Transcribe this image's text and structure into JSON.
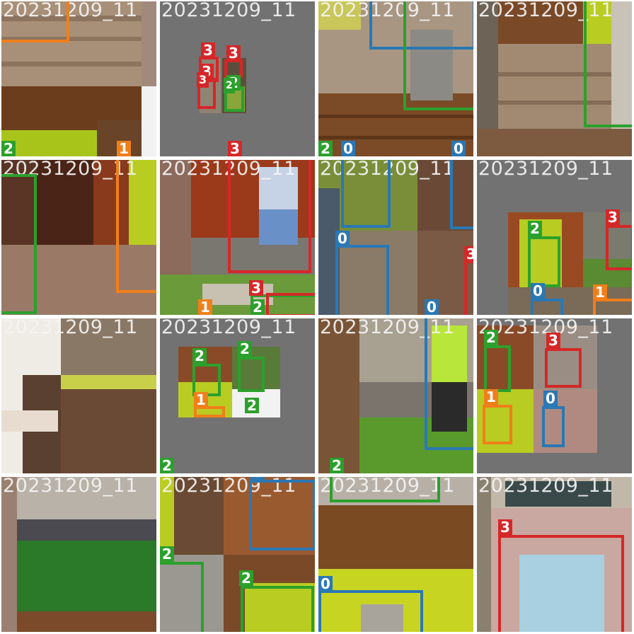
{
  "colors": {
    "0": "#2a78b4",
    "1": "#f07f1a",
    "2": "#2ca02c",
    "3": "#d62728"
  },
  "tiles": [
    {
      "filename": "20231209_11",
      "labels": [
        "2",
        "1"
      ]
    },
    {
      "filename": "20231209_11",
      "labels": [
        "3",
        "3",
        "3",
        "3",
        "2",
        "2",
        "3"
      ]
    },
    {
      "filename": "20231209_11",
      "labels": [
        "2",
        "0",
        "0"
      ]
    },
    {
      "filename": "20231209_11",
      "labels": []
    },
    {
      "filename": "20231209_11",
      "labels": []
    },
    {
      "filename": "20231209_11",
      "labels": [
        "3",
        "1",
        "2"
      ]
    },
    {
      "filename": "20231209_11",
      "labels": [
        "0",
        "0",
        "3"
      ]
    },
    {
      "filename": "20231209_11",
      "labels": [
        "2",
        "3",
        "0",
        "1"
      ]
    },
    {
      "filename": "20231209_11",
      "labels": []
    },
    {
      "filename": "20231209_11",
      "labels": [
        "2",
        "2",
        "1",
        "2",
        "2"
      ]
    },
    {
      "filename": "20231209_11",
      "labels": [
        "2"
      ]
    },
    {
      "filename": "20231209_11",
      "labels": [
        "2",
        "3",
        "1",
        "0"
      ]
    },
    {
      "filename": "20231209_11",
      "labels": []
    },
    {
      "filename": "20231209_11",
      "labels": [
        "0",
        "2",
        "2"
      ]
    },
    {
      "filename": "20231209_11",
      "labels": [
        "0"
      ]
    },
    {
      "filename": "20231209_11",
      "labels": [
        "3"
      ]
    }
  ]
}
